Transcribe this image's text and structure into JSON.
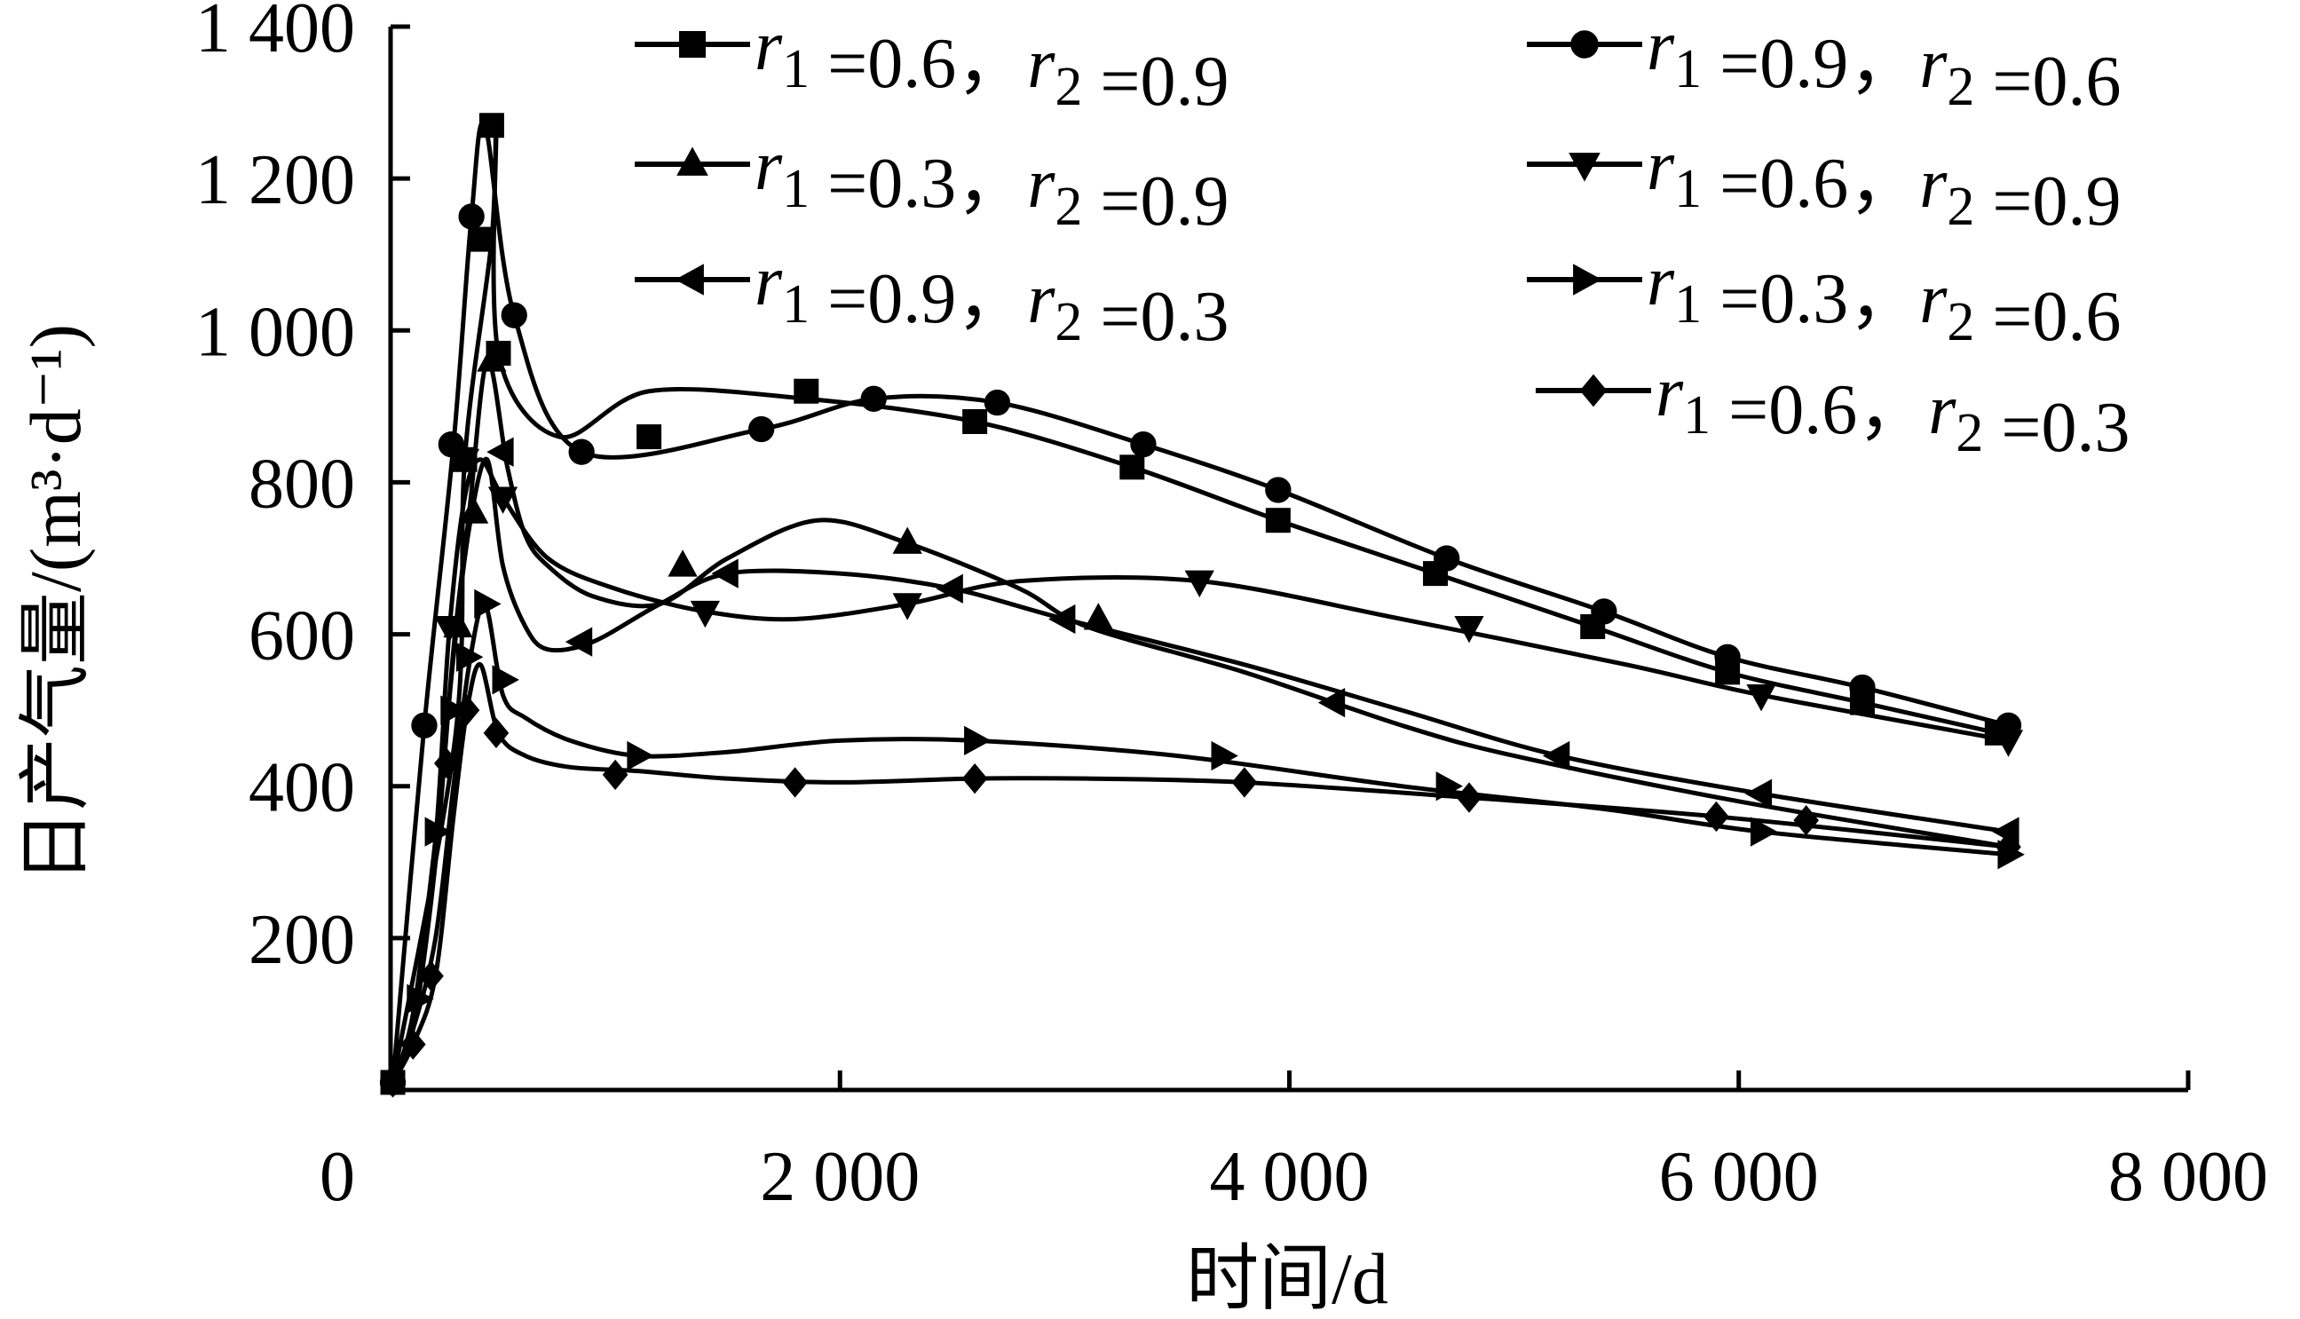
{
  "chart_data": {
    "type": "line",
    "title": "",
    "xlabel": "时间/d",
    "ylabel": "日产气量/(m³·d⁻¹)",
    "xlim": [
      0,
      8000
    ],
    "ylim": [
      0,
      1400
    ],
    "xticks": [
      0,
      2000,
      4000,
      6000,
      8000
    ],
    "xtick_labels": [
      "0",
      "2 000",
      "4 000",
      "6 000",
      "8 000"
    ],
    "yticks": [
      200,
      400,
      600,
      800,
      1000,
      1200,
      1400
    ],
    "ytick_labels": [
      "200",
      "400",
      "600",
      "800",
      "1 000",
      "1 200",
      "1 400"
    ],
    "grid": false,
    "legend_position": "top",
    "series": [
      {
        "label": {
          "r1": "0.6",
          "r2": "0.9"
        },
        "marker": "square",
        "x": [
          10,
          290,
          330,
          450,
          470,
          480,
          750,
          1150,
          1850,
          2600,
          3300,
          3950,
          4650,
          5350,
          5950,
          6550,
          7150
        ],
        "y": [
          10,
          470,
          830,
          1120,
          1270,
          970,
          860,
          920,
          910,
          880,
          820,
          750,
          680,
          610,
          550,
          510,
          470
        ],
        "markers_x": [
          10,
          330,
          410,
          450,
          480,
          1150,
          1850,
          2600,
          3300,
          3950,
          4650,
          5350,
          5950,
          6550,
          7150
        ],
        "markers_y": [
          10,
          830,
          1120,
          1270,
          970,
          860,
          920,
          880,
          820,
          750,
          680,
          610,
          550,
          510,
          470
        ]
      },
      {
        "label": {
          "r1": "0.9",
          "r2": "0.6"
        },
        "marker": "circle",
        "x": [
          10,
          150,
          280,
          360,
          420,
          550,
          850,
          1650,
          2150,
          2700,
          3350,
          3950,
          4700,
          5400,
          5950,
          6550,
          7200
        ],
        "y": [
          10,
          480,
          850,
          1150,
          1270,
          1020,
          840,
          870,
          910,
          905,
          850,
          790,
          700,
          630,
          570,
          530,
          480
        ],
        "markers_x": [
          10,
          150,
          270,
          360,
          550,
          850,
          1650,
          2150,
          2700,
          3350,
          3950,
          4700,
          5400,
          5950,
          6550,
          7200
        ],
        "markers_y": [
          10,
          480,
          850,
          1150,
          1020,
          840,
          870,
          910,
          905,
          850,
          790,
          700,
          630,
          570,
          530,
          480
        ]
      },
      {
        "label": {
          "r1": "0.3",
          "r2": "0.9"
        },
        "marker": "triangle-up",
        "x": [
          10,
          100,
          200,
          280,
          350,
          430,
          520,
          600,
          700,
          900,
          1200,
          1500,
          1900,
          2300,
          2800,
          3100,
          3800,
          4500,
          5000,
          6000,
          7200
        ],
        "y": [
          10,
          80,
          300,
          580,
          760,
          960,
          820,
          730,
          690,
          650,
          640,
          700,
          750,
          720,
          660,
          610,
          550,
          480,
          440,
          380,
          320
        ],
        "markers_x": [
          300,
          370,
          450,
          1300,
          2300,
          3150
        ],
        "markers_y": [
          610,
          760,
          960,
          690,
          720,
          620
        ]
      },
      {
        "label": {
          "r1": "0.6",
          "r2": "0.9"
        },
        "marker": "triangle-down",
        "x": [
          10,
          100,
          200,
          260,
          330,
          400,
          500,
          700,
          1000,
          1400,
          1800,
          2300,
          2800,
          3600,
          4500,
          5500,
          6100,
          7200
        ],
        "y": [
          10,
          100,
          330,
          600,
          780,
          830,
          780,
          700,
          660,
          630,
          620,
          640,
          670,
          670,
          620,
          560,
          520,
          460
        ],
        "markers_x": [
          260,
          330,
          500,
          1400,
          2300,
          3600,
          4800,
          6100,
          7200
        ],
        "markers_y": [
          610,
          830,
          780,
          630,
          640,
          670,
          610,
          520,
          460
        ]
      },
      {
        "label": {
          "r1": "0.9",
          "r2": "0.3"
        },
        "marker": "triangle-left",
        "x": [
          10,
          100,
          200,
          280,
          350,
          430,
          500,
          600,
          700,
          900,
          1200,
          1500,
          2000,
          2500,
          3000,
          3800,
          4500,
          5200,
          6100,
          7200
        ],
        "y": [
          10,
          100,
          330,
          570,
          740,
          830,
          690,
          610,
          580,
          590,
          640,
          680,
          680,
          660,
          620,
          560,
          500,
          440,
          390,
          340
        ],
        "markers_x": [
          500,
          850,
          1500,
          2500,
          3000,
          4200,
          5200,
          6100,
          7200
        ],
        "markers_y": [
          840,
          590,
          680,
          660,
          620,
          510,
          440,
          390,
          340
        ]
      },
      {
        "label": {
          "r1": "0.3",
          "r2": "0.6"
        },
        "marker": "triangle-right",
        "x": [
          10,
          100,
          200,
          280,
          350,
          420,
          500,
          600,
          800,
          1100,
          1500,
          2000,
          2600,
          3500,
          4500,
          5400,
          6100,
          7200
        ],
        "y": [
          10,
          80,
          200,
          400,
          560,
          640,
          520,
          490,
          460,
          440,
          445,
          460,
          460,
          440,
          400,
          370,
          340,
          310
        ],
        "markers_x": [
          120,
          200,
          270,
          340,
          420,
          500,
          1100,
          2600,
          3700,
          4700,
          6100,
          7200
        ],
        "markers_y": [
          120,
          340,
          500,
          570,
          640,
          540,
          440,
          460,
          440,
          400,
          340,
          310
        ]
      },
      {
        "label": {
          "r1": "0.6",
          "r2": "0.3"
        },
        "marker": "diamond",
        "x": [
          10,
          100,
          200,
          280,
          340,
          400,
          480,
          600,
          800,
          1100,
          1500,
          2000,
          2600,
          3100,
          3800,
          4800,
          5900,
          7200
        ],
        "y": [
          10,
          60,
          150,
          360,
          500,
          560,
          470,
          440,
          425,
          420,
          410,
          405,
          410,
          410,
          405,
          385,
          360,
          320
        ],
        "markers_x": [
          10,
          100,
          180,
          250,
          340,
          470,
          1000,
          1800,
          2600,
          3800,
          4800,
          5900,
          6300,
          7200
        ],
        "markers_y": [
          10,
          60,
          150,
          430,
          500,
          470,
          415,
          405,
          410,
          405,
          385,
          360,
          355,
          320
        ]
      }
    ]
  }
}
